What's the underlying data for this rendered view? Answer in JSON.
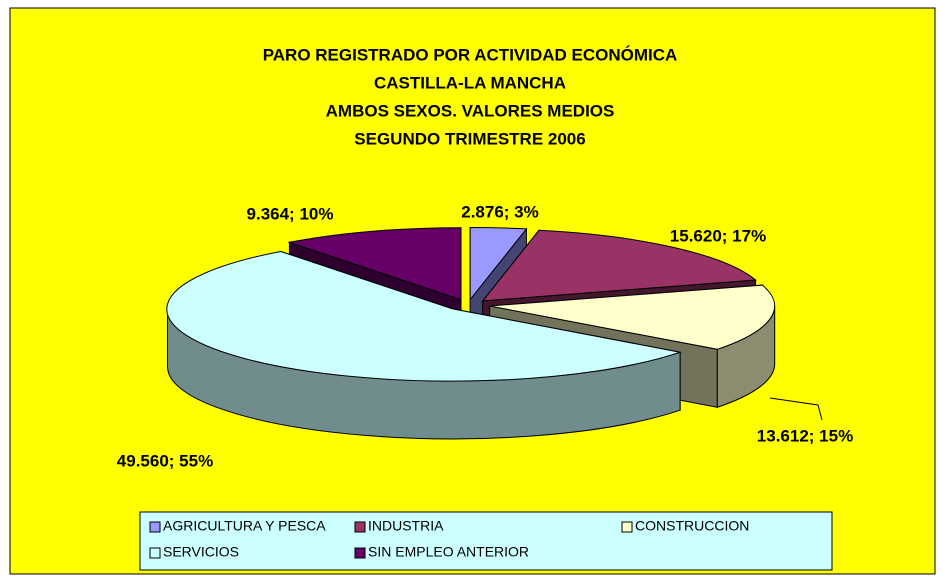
{
  "chart_data": {
    "type": "pie3d",
    "title": [
      "PARO REGISTRADO POR ACTIVIDAD ECONÓMICA",
      "CASTILLA-LA MANCHA",
      "AMBOS SEXOS.  VALORES MEDIOS",
      "SEGUNDO TRIMESTRE 2006"
    ],
    "categories": [
      "AGRICULTURA Y PESCA",
      "INDUSTRIA",
      "CONSTRUCCION",
      "SERVICIOS",
      "SIN EMPLEO ANTERIOR"
    ],
    "values": [
      2876,
      15620,
      13612,
      49560,
      9364
    ],
    "value_labels": [
      "2.876; 3%",
      "15.620; 17%",
      "13.612; 15%",
      "49.560; 55%",
      "9.364; 10%"
    ],
    "colors": [
      "#9999ff",
      "#993366",
      "#ffffcc",
      "#ccffff",
      "#660066"
    ],
    "legend": "bottom"
  }
}
